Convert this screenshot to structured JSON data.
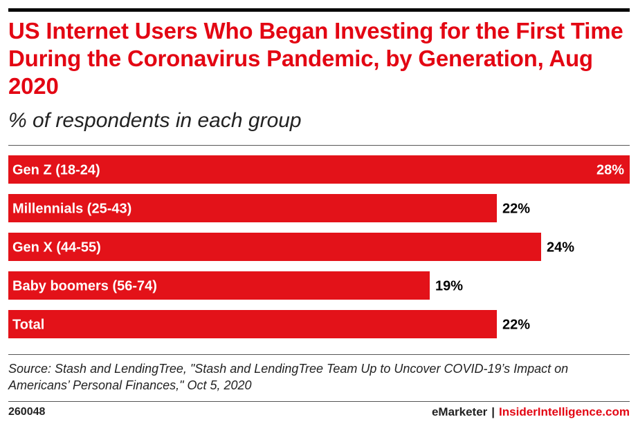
{
  "header": {
    "title": "US Internet Users Who Began Investing for the First Time During the Coronavirus Pandemic, by Generation, Aug 2020",
    "subtitle": "% of respondents in each group"
  },
  "chart_data": {
    "type": "bar",
    "orientation": "horizontal",
    "title": "US Internet Users Who Began Investing for the First Time During the Coronavirus Pandemic, by Generation, Aug 2020",
    "subtitle": "% of respondents in each group",
    "categories": [
      "Gen Z (18-24)",
      "Millennials (25-43)",
      "Gen X (44-55)",
      "Baby boomers (56-74)",
      "Total"
    ],
    "values": [
      28,
      22,
      24,
      19,
      22
    ],
    "value_labels": [
      "28%",
      "22%",
      "24%",
      "19%",
      "22%"
    ],
    "xlim": [
      0,
      28
    ],
    "grid": false,
    "bar_color": "#e31219"
  },
  "footer": {
    "source": "Source: Stash and LendingTree, \"Stash and LendingTree Team Up to Uncover COVID-19’s Impact on Americans’ Personal Finances,\" Oct 5, 2020",
    "chart_id": "260048",
    "brand_left": "eMarketer",
    "brand_sep": "|",
    "brand_right": "InsiderIntelligence.com"
  },
  "colors": {
    "accent": "#e30613",
    "bar": "#e31219",
    "text": "#000000"
  }
}
